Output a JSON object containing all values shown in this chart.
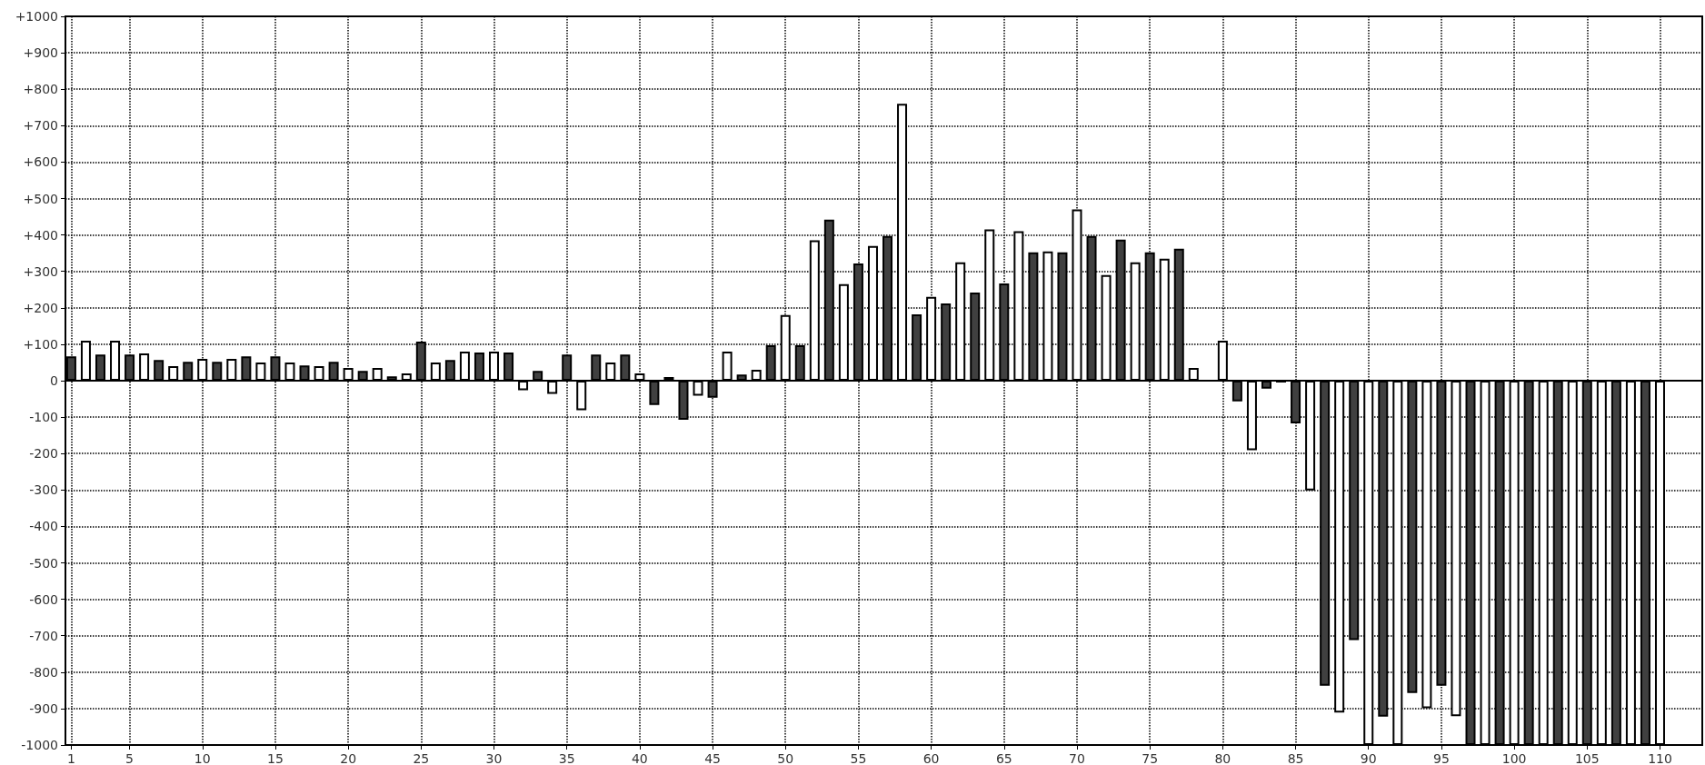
{
  "chart_data": {
    "type": "bar",
    "x": [
      1,
      2,
      3,
      4,
      5,
      6,
      7,
      8,
      9,
      10,
      11,
      12,
      13,
      14,
      15,
      16,
      17,
      18,
      19,
      20,
      21,
      22,
      23,
      24,
      25,
      26,
      27,
      28,
      29,
      30,
      31,
      32,
      33,
      34,
      35,
      36,
      37,
      38,
      39,
      40,
      41,
      42,
      43,
      44,
      45,
      46,
      47,
      48,
      49,
      50,
      51,
      52,
      53,
      54,
      55,
      56,
      57,
      58,
      59,
      60,
      61,
      62,
      63,
      64,
      65,
      66,
      67,
      68,
      69,
      70,
      71,
      72,
      73,
      74,
      75,
      76,
      77,
      78,
      79,
      80,
      81,
      82,
      83,
      84,
      85,
      86,
      87,
      88,
      89,
      90,
      91,
      92,
      93,
      94,
      95,
      96,
      97,
      98,
      99,
      100,
      101,
      102,
      103,
      104,
      105,
      106,
      107,
      108,
      109,
      110
    ],
    "values": [
      67,
      110,
      72,
      110,
      72,
      75,
      57,
      40,
      52,
      60,
      52,
      60,
      67,
      50,
      67,
      50,
      42,
      40,
      52,
      35,
      27,
      35,
      12,
      20,
      107,
      50,
      57,
      80,
      77,
      80,
      77,
      -26,
      27,
      -36,
      72,
      -81,
      72,
      50,
      72,
      20,
      -67,
      10,
      -107,
      -41,
      -47,
      80,
      17,
      30,
      97,
      180,
      97,
      385,
      442,
      265,
      322,
      370,
      397,
      760,
      182,
      230,
      212,
      325,
      242,
      415,
      267,
      410,
      352,
      355,
      352,
      470,
      397,
      290,
      387,
      325,
      352,
      335,
      362,
      35,
      null,
      110,
      -57,
      -191,
      -22,
      -5,
      -117,
      -301,
      -837,
      -911,
      -712,
      -1000,
      -922,
      -1000,
      -857,
      -899,
      -837,
      -921,
      -1000,
      -1000,
      -1000,
      -1000,
      -1000,
      -1000,
      -1000,
      -1000,
      -1000,
      -1000,
      -1000,
      -1000,
      -1000,
      -1000
    ],
    "colors": [
      "#404040",
      "#ffffff",
      "#404040",
      "#ffffff",
      "#404040",
      "#ffffff",
      "#404040",
      "#ffffff",
      "#404040",
      "#ffffff",
      "#404040",
      "#ffffff",
      "#404040",
      "#ffffff",
      "#404040",
      "#ffffff",
      "#404040",
      "#ffffff",
      "#404040",
      "#ffffff",
      "#404040",
      "#ffffff",
      "#404040",
      "#ffffff",
      "#404040",
      "#ffffff",
      "#404040",
      "#ffffff",
      "#404040",
      "#ffffff",
      "#404040",
      "#ffffff",
      "#404040",
      "#ffffff",
      "#404040",
      "#ffffff",
      "#404040",
      "#ffffff",
      "#404040",
      "#ffffff",
      "#404040",
      "#ffffff",
      "#404040",
      "#ffffff",
      "#404040",
      "#ffffff",
      "#404040",
      "#ffffff",
      "#404040",
      "#ffffff",
      "#404040",
      "#ffffff",
      "#404040",
      "#ffffff",
      "#404040",
      "#ffffff",
      "#404040",
      "#ffffff",
      "#404040",
      "#ffffff",
      "#404040",
      "#ffffff",
      "#404040",
      "#ffffff",
      "#404040",
      "#ffffff",
      "#404040",
      "#ffffff",
      "#404040",
      "#ffffff",
      "#404040",
      "#ffffff",
      "#404040",
      "#ffffff",
      "#404040",
      "#ffffff",
      "#404040",
      "#ffffff",
      "#404040",
      "#ffffff",
      "#404040",
      "#ffffff",
      "#404040",
      "#ffffff",
      "#404040",
      "#ffffff",
      "#404040",
      "#ffffff",
      "#404040",
      "#ffffff",
      "#404040",
      "#ffffff",
      "#404040",
      "#ffffff",
      "#404040",
      "#ffffff",
      "#404040",
      "#ffffff",
      "#404040",
      "#ffffff",
      "#404040",
      "#ffffff",
      "#404040",
      "#ffffff",
      "#404040",
      "#ffffff",
      "#404040",
      "#ffffff",
      "#404040",
      "#ffffff"
    ],
    "xlim": [
      0.6,
      112.9
    ],
    "xticks": [
      1,
      5,
      10,
      15,
      20,
      25,
      30,
      35,
      40,
      45,
      50,
      55,
      60,
      65,
      70,
      75,
      80,
      85,
      90,
      95,
      100,
      105,
      110
    ],
    "ylim": [
      -1000,
      1000
    ],
    "yticks": [
      -1000,
      -900,
      -800,
      -700,
      -600,
      -500,
      -400,
      -300,
      -200,
      -100,
      0,
      {
        "value": 100,
        "label": "+100"
      },
      {
        "value": 200,
        "label": "+200"
      },
      {
        "value": 300,
        "label": "+300"
      },
      {
        "value": 400,
        "label": "+400"
      },
      {
        "value": 500,
        "label": "+500"
      },
      {
        "value": 600,
        "label": "+600"
      },
      {
        "value": 700,
        "label": "+700"
      },
      {
        "value": 800,
        "label": "+800"
      },
      {
        "value": 900,
        "label": "+900"
      },
      {
        "value": 1000,
        "label": "+1000"
      }
    ],
    "ref_lines": [
      {
        "axis": "y",
        "value": 0,
        "color": "#000000",
        "line_style": "solid"
      }
    ],
    "grid": true
  }
}
